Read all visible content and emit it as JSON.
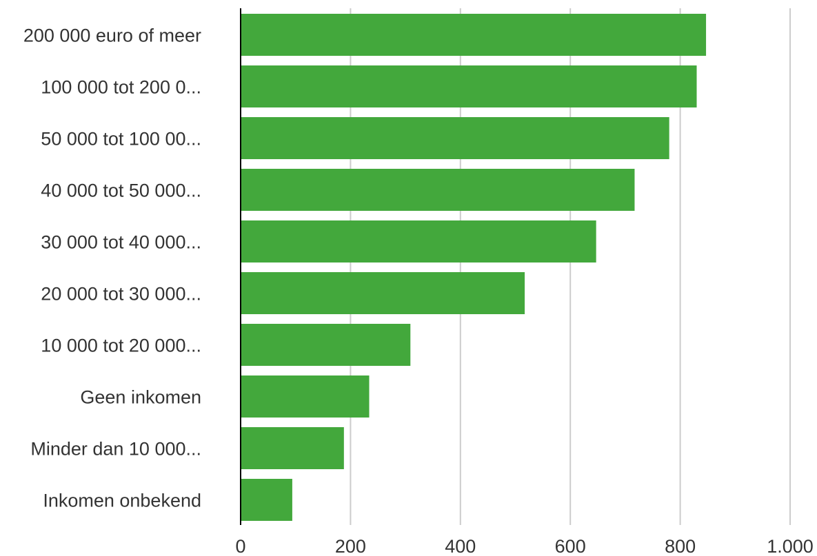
{
  "chart_data": {
    "type": "bar",
    "orientation": "horizontal",
    "categories": [
      "200 000 euro of meer",
      "100 000 tot 200 0...",
      "50 000 tot 100 00...",
      "40 000 tot 50 000...",
      "30 000 tot 40 000...",
      "20 000 tot 30 000...",
      "10 000 tot 20 000...",
      "Geen inkomen",
      "Minder dan 10 000...",
      "Inkomen onbekend"
    ],
    "values": [
      847,
      830,
      780,
      717,
      647,
      517,
      309,
      234,
      188,
      94
    ],
    "xlim": [
      0,
      1000
    ],
    "ticks": [
      0,
      200,
      400,
      600,
      800,
      1000
    ],
    "tick_labels": [
      "0",
      "200",
      "400",
      "600",
      "800",
      "1.000"
    ],
    "grid": true,
    "bar_color": "#43a83c",
    "title": "",
    "xlabel": "",
    "ylabel": ""
  }
}
